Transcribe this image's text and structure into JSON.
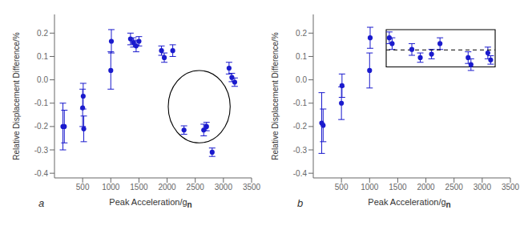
{
  "chart_data": [
    {
      "type": "scatter",
      "title": "a",
      "x": [
        150,
        175,
        500,
        510,
        520,
        1000,
        1010,
        1350,
        1400,
        1450,
        1500,
        1900,
        1950,
        2100,
        2300,
        2650,
        2700,
        2800,
        3100,
        3150,
        3200
      ],
      "values": [
        -0.2,
        -0.2,
        -0.12,
        -0.07,
        -0.21,
        0.04,
        0.165,
        0.175,
        0.16,
        0.145,
        0.165,
        0.125,
        0.095,
        0.125,
        -0.215,
        -0.215,
        -0.2,
        -0.31,
        0.05,
        0.01,
        -0.01
      ],
      "yerr": [
        0.1,
        0.07,
        0.08,
        0.055,
        0.055,
        0.08,
        0.05,
        0.025,
        0.02,
        0.025,
        0.02,
        0.02,
        0.02,
        0.025,
        0.018,
        0.025,
        0.018,
        0.018,
        0.025,
        0.018,
        0.018
      ],
      "color": "#1a1acd",
      "marker": "circle",
      "ellipse": {
        "cx": 2570,
        "cy": -0.115,
        "width": 1100,
        "height": 0.31
      },
      "xlim": [
        0,
        3500
      ],
      "ylim": [
        -0.42,
        0.28
      ],
      "xticks": [
        500,
        1000,
        1500,
        2000,
        2500,
        3000,
        3500
      ],
      "yticks": [
        -0.4,
        -0.3,
        -0.2,
        -0.1,
        {
          "value": 0.0,
          "label": "0.0"
        },
        0.1,
        0.2
      ],
      "ylabel": "Relative Displacement Difference/%",
      "xlabel": "Peak Acceleration/g",
      "xlabel_subscript": "n",
      "grid": false
    },
    {
      "type": "scatter",
      "title": "b",
      "x": [
        150,
        175,
        500,
        510,
        1000,
        1010,
        1350,
        1400,
        1750,
        1900,
        2100,
        2250,
        2750,
        2800,
        3100,
        3150
      ],
      "values": [
        -0.185,
        -0.195,
        -0.1,
        -0.025,
        0.04,
        0.18,
        0.18,
        0.155,
        0.13,
        0.095,
        0.11,
        0.155,
        0.095,
        0.065,
        0.115,
        0.085
      ],
      "yerr": [
        0.13,
        0.07,
        0.07,
        0.05,
        0.075,
        0.045,
        0.025,
        0.025,
        0.025,
        0.02,
        0.02,
        0.025,
        0.025,
        0.025,
        0.025,
        0.018
      ],
      "color": "#1a1acd",
      "marker": "circle",
      "box": {
        "x0": 1295,
        "x1": 3230,
        "y0": 0.055,
        "y1": 0.215,
        "dashed_y": 0.128
      },
      "xlim": [
        0,
        3500
      ],
      "ylim": [
        -0.42,
        0.28
      ],
      "xticks": [
        500,
        1000,
        1500,
        2000,
        2500,
        3000,
        3500
      ],
      "yticks": [
        -0.4,
        -0.3,
        -0.2,
        -0.1,
        {
          "value": 0.0,
          "label": "0.0"
        },
        0.1,
        0.2
      ],
      "ylabel": "Relative Displacement Difference/%",
      "xlabel": "Peak Acceleration/g",
      "xlabel_subscript": "n",
      "grid": false
    }
  ]
}
